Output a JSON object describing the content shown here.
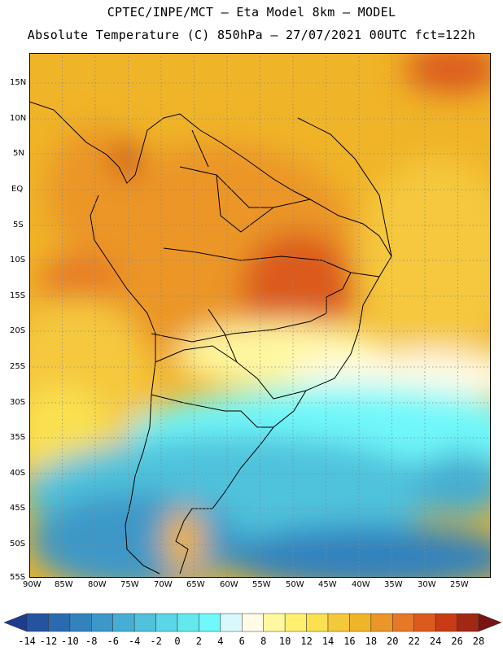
{
  "header": {
    "title_line1": "CPTEC/INPE/MCT –  Eta Model 8km – MODEL",
    "title_line2": "Absolute Temperature (C) 850hPa – 27/07/2021 00UTC fct=122h"
  },
  "map": {
    "lat_labels": [
      "15N",
      "10N",
      "5N",
      "EQ",
      "5S",
      "10S",
      "15S",
      "20S",
      "25S",
      "30S",
      "35S",
      "40S",
      "45S",
      "50S",
      "55S"
    ],
    "lon_labels": [
      "90W",
      "85W",
      "80W",
      "75W",
      "70W",
      "65W",
      "60W",
      "55W",
      "50W",
      "45W",
      "40W",
      "35W",
      "30W",
      "25W"
    ],
    "lon_range": [
      -90,
      -20
    ],
    "lat_range": [
      -55,
      19
    ],
    "gridlines": "dotted"
  },
  "colorbar": {
    "ticks": [
      "-14",
      "-12",
      "-10",
      "-8",
      "-6",
      "-4",
      "-2",
      "0",
      "2",
      "4",
      "6",
      "8",
      "10",
      "12",
      "14",
      "16",
      "18",
      "20",
      "22",
      "24",
      "26",
      "28"
    ],
    "colors": [
      "#1e3c8c",
      "#2453a0",
      "#2a6ab0",
      "#3282be",
      "#3c98c8",
      "#46aed2",
      "#50c2dc",
      "#5ad6e6",
      "#64e8f0",
      "#70f8fa",
      "#d8f8fc",
      "#fffbe6",
      "#fff8a0",
      "#fff070",
      "#fae150",
      "#f5c83c",
      "#f0b428",
      "#eb9628",
      "#e67828",
      "#dc5a1e",
      "#c83c14",
      "#a02814",
      "#781414"
    ]
  }
}
